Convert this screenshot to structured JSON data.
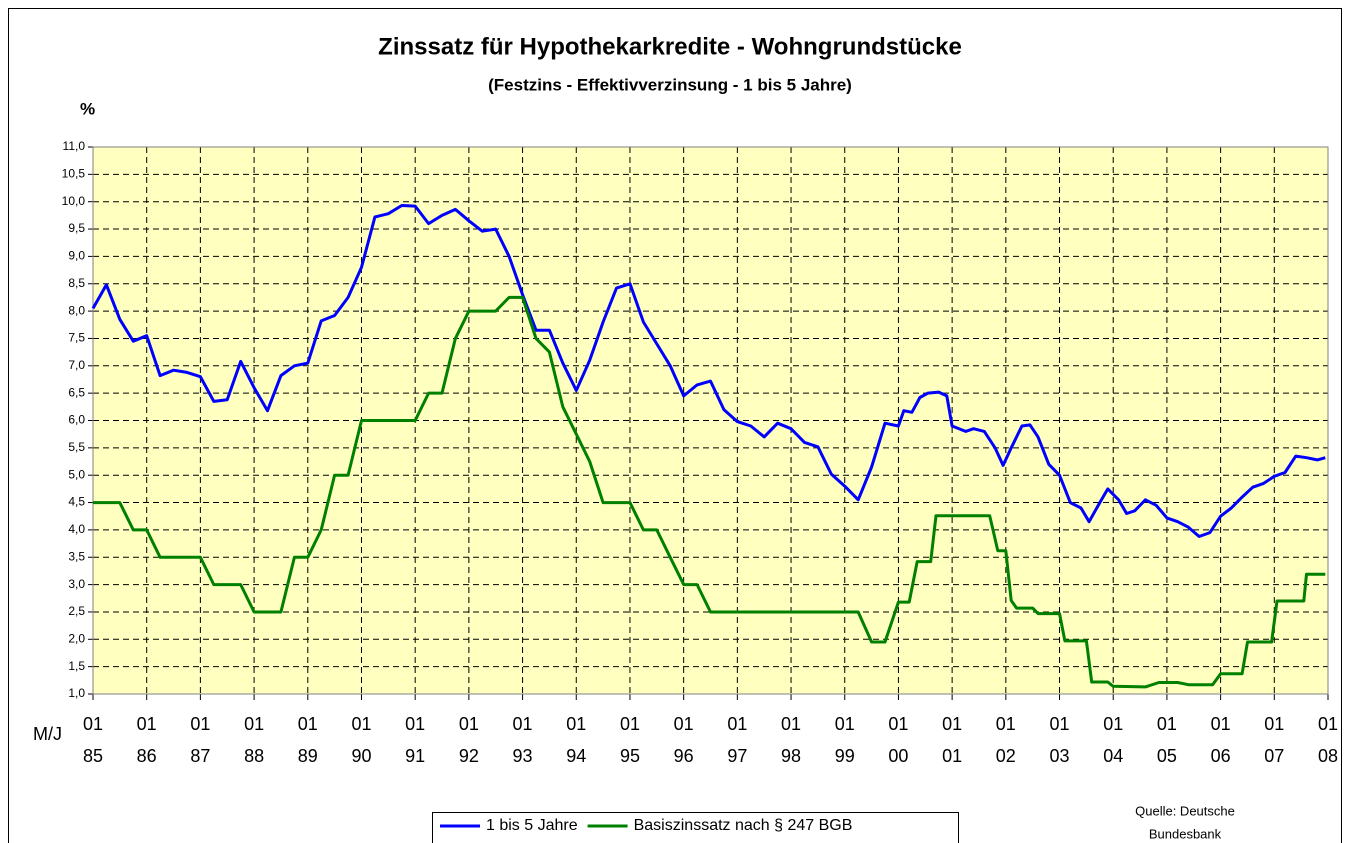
{
  "chart_data": {
    "type": "line",
    "title": "Zinssatz für Hypothekarkredite - Wohngrundstücke",
    "subtitle": "(Festzins - Effektivverzinsung - 1 bis 5 Jahre)",
    "y_label": "%",
    "x_label": "M/J",
    "source": [
      "Quelle: Deutsche",
      "Bundesbank"
    ],
    "background": "#ffffc0",
    "grid": true,
    "legend": "bottom",
    "xlim": [
      1985,
      2008
    ],
    "xticks": [
      {
        "value": 1985,
        "label": "01\n85"
      },
      {
        "value": 1986,
        "label": "01\n86"
      },
      {
        "value": 1987,
        "label": "01\n87"
      },
      {
        "value": 1988,
        "label": "01\n88"
      },
      {
        "value": 1989,
        "label": "01\n89"
      },
      {
        "value": 1990,
        "label": "01\n90"
      },
      {
        "value": 1991,
        "label": "01\n91"
      },
      {
        "value": 1992,
        "label": "01\n92"
      },
      {
        "value": 1993,
        "label": "01\n93"
      },
      {
        "value": 1994,
        "label": "01\n94"
      },
      {
        "value": 1995,
        "label": "01\n95"
      },
      {
        "value": 1996,
        "label": "01\n96"
      },
      {
        "value": 1997,
        "label": "01\n97"
      },
      {
        "value": 1998,
        "label": "01\n98"
      },
      {
        "value": 1999,
        "label": "01\n99"
      },
      {
        "value": 2000,
        "label": "01\n00"
      },
      {
        "value": 2001,
        "label": "01\n01"
      },
      {
        "value": 2002,
        "label": "01\n02"
      },
      {
        "value": 2003,
        "label": "01\n03"
      },
      {
        "value": 2004,
        "label": "01\n04"
      },
      {
        "value": 2005,
        "label": "01\n05"
      },
      {
        "value": 2006,
        "label": "01\n06"
      },
      {
        "value": 2007,
        "label": "01\n07"
      },
      {
        "value": 2008,
        "label": "01\n08"
      }
    ],
    "ylim": [
      1,
      11
    ],
    "yticks": [
      {
        "value": 1,
        "label": "1,0"
      },
      {
        "value": 1.5,
        "label": "1,5"
      },
      {
        "value": 2,
        "label": "2,0"
      },
      {
        "value": 2.5,
        "label": "2,5"
      },
      {
        "value": 3,
        "label": "3,0"
      },
      {
        "value": 3.5,
        "label": "3,5"
      },
      {
        "value": 4,
        "label": "4,0"
      },
      {
        "value": 4.5,
        "label": "4,5"
      },
      {
        "value": 5,
        "label": "5,0"
      },
      {
        "value": 5.5,
        "label": "5,5"
      },
      {
        "value": 6,
        "label": "6,0"
      },
      {
        "value": 6.5,
        "label": "6,5"
      },
      {
        "value": 7,
        "label": "7,0"
      },
      {
        "value": 7.5,
        "label": "7,5"
      },
      {
        "value": 8,
        "label": "8,0"
      },
      {
        "value": 8.5,
        "label": "8,5"
      },
      {
        "value": 9,
        "label": "9,0"
      },
      {
        "value": 9.5,
        "label": "9,5"
      },
      {
        "value": 10,
        "label": "10,0"
      },
      {
        "value": 10.5,
        "label": "10,5"
      },
      {
        "value": 11,
        "label": "11,0"
      }
    ],
    "series": [
      {
        "name": "1 bis 5 Jahre",
        "color": "#0000ff",
        "x": [
          1985.0,
          1985.25,
          1985.5,
          1985.75,
          1986.0,
          1986.25,
          1986.5,
          1986.75,
          1987.0,
          1987.25,
          1987.5,
          1987.75,
          1988.0,
          1988.25,
          1988.5,
          1988.75,
          1989.0,
          1989.25,
          1989.5,
          1989.75,
          1990.0,
          1990.25,
          1990.5,
          1990.75,
          1991.0,
          1991.25,
          1991.5,
          1991.75,
          1992.0,
          1992.25,
          1992.5,
          1992.75,
          1993.0,
          1993.25,
          1993.5,
          1993.75,
          1994.0,
          1994.25,
          1994.5,
          1994.75,
          1995.0,
          1995.25,
          1995.5,
          1995.75,
          1996.0,
          1996.25,
          1996.5,
          1996.75,
          1997.0,
          1997.25,
          1997.5,
          1997.75,
          1998.0,
          1998.25,
          1998.5,
          1998.75,
          1999.0,
          1999.25,
          1999.5,
          1999.75,
          2000.0,
          2000.1,
          2000.25,
          2000.4,
          2000.55,
          2000.75,
          2000.9,
          2001.0,
          2001.25,
          2001.4,
          2001.6,
          2001.8,
          2001.95,
          2002.1,
          2002.3,
          2002.45,
          2002.6,
          2002.8,
          2003.0,
          2003.2,
          2003.4,
          2003.55,
          2003.75,
          2003.9,
          2004.1,
          2004.25,
          2004.4,
          2004.6,
          2004.8,
          2005.0,
          2005.2,
          2005.4,
          2005.6,
          2005.8,
          2006.0,
          2006.2,
          2006.4,
          2006.6,
          2006.8,
          2007.0,
          2007.2,
          2007.4,
          2007.6,
          2007.8,
          2007.95
        ],
        "values": [
          8.05,
          8.48,
          7.85,
          7.45,
          7.55,
          6.82,
          6.92,
          6.88,
          6.8,
          6.35,
          6.38,
          7.08,
          6.6,
          6.18,
          6.82,
          7.0,
          7.05,
          7.82,
          7.92,
          8.25,
          8.8,
          9.72,
          9.78,
          9.93,
          9.92,
          9.6,
          9.75,
          9.86,
          9.65,
          9.46,
          9.5,
          9.0,
          8.3,
          7.65,
          7.65,
          7.05,
          6.55,
          7.1,
          7.8,
          8.42,
          8.5,
          7.8,
          7.4,
          7.0,
          6.45,
          6.65,
          6.72,
          6.2,
          5.98,
          5.9,
          5.7,
          5.95,
          5.85,
          5.6,
          5.52,
          5.02,
          4.8,
          4.55,
          5.15,
          5.95,
          5.9,
          6.18,
          6.15,
          6.42,
          6.5,
          6.52,
          6.45,
          5.9,
          5.8,
          5.85,
          5.8,
          5.5,
          5.18,
          5.5,
          5.9,
          5.92,
          5.7,
          5.2,
          5.0,
          4.5,
          4.4,
          4.15,
          4.5,
          4.75,
          4.55,
          4.3,
          4.35,
          4.55,
          4.45,
          4.22,
          4.15,
          4.05,
          3.88,
          3.95,
          4.25,
          4.4,
          4.6,
          4.78,
          4.85,
          4.98,
          5.05,
          5.35,
          5.32,
          5.28,
          5.32
        ]
      },
      {
        "name": "Basiszinssatz nach § 247 BGB",
        "color": "#008000",
        "x": [
          1985.0,
          1985.5,
          1985.75,
          1986.0,
          1986.25,
          1987.0,
          1987.25,
          1987.75,
          1988.0,
          1988.5,
          1988.75,
          1989.0,
          1989.25,
          1989.5,
          1989.75,
          1990.0,
          1991.0,
          1991.25,
          1991.5,
          1991.75,
          1992.0,
          1992.5,
          1992.75,
          1993.0,
          1993.25,
          1993.5,
          1993.75,
          1994.0,
          1994.25,
          1994.5,
          1995.0,
          1995.25,
          1995.5,
          1995.75,
          1996.0,
          1996.25,
          1996.5,
          1999.0,
          1999.25,
          1999.5,
          1999.75,
          2000.0,
          2000.2,
          2000.35,
          2000.6,
          2000.7,
          2001.5,
          2001.7,
          2001.85,
          2002.0,
          2002.1,
          2002.2,
          2002.5,
          2002.6,
          2003.0,
          2003.1,
          2003.5,
          2003.6,
          2003.9,
          2004.0,
          2004.6,
          2004.85,
          2005.2,
          2005.4,
          2005.85,
          2006.0,
          2006.4,
          2006.5,
          2006.95,
          2007.05,
          2007.55,
          2007.6,
          2007.95
        ],
        "values": [
          4.5,
          4.5,
          4.0,
          4.0,
          3.5,
          3.5,
          3.0,
          3.0,
          2.5,
          2.5,
          3.5,
          3.5,
          4.0,
          5.0,
          5.0,
          6.0,
          6.0,
          6.5,
          6.5,
          7.5,
          8.0,
          8.0,
          8.25,
          8.25,
          7.5,
          7.25,
          6.25,
          5.75,
          5.25,
          4.5,
          4.5,
          4.0,
          4.0,
          3.5,
          3.0,
          3.0,
          2.5,
          2.5,
          2.5,
          1.95,
          1.95,
          2.68,
          2.68,
          3.42,
          3.42,
          4.26,
          4.26,
          4.26,
          3.62,
          3.62,
          2.71,
          2.57,
          2.57,
          2.47,
          2.47,
          1.97,
          1.97,
          1.22,
          1.22,
          1.14,
          1.13,
          1.21,
          1.21,
          1.17,
          1.17,
          1.37,
          1.37,
          1.95,
          1.95,
          2.7,
          2.7,
          3.19,
          3.19
        ]
      }
    ]
  }
}
